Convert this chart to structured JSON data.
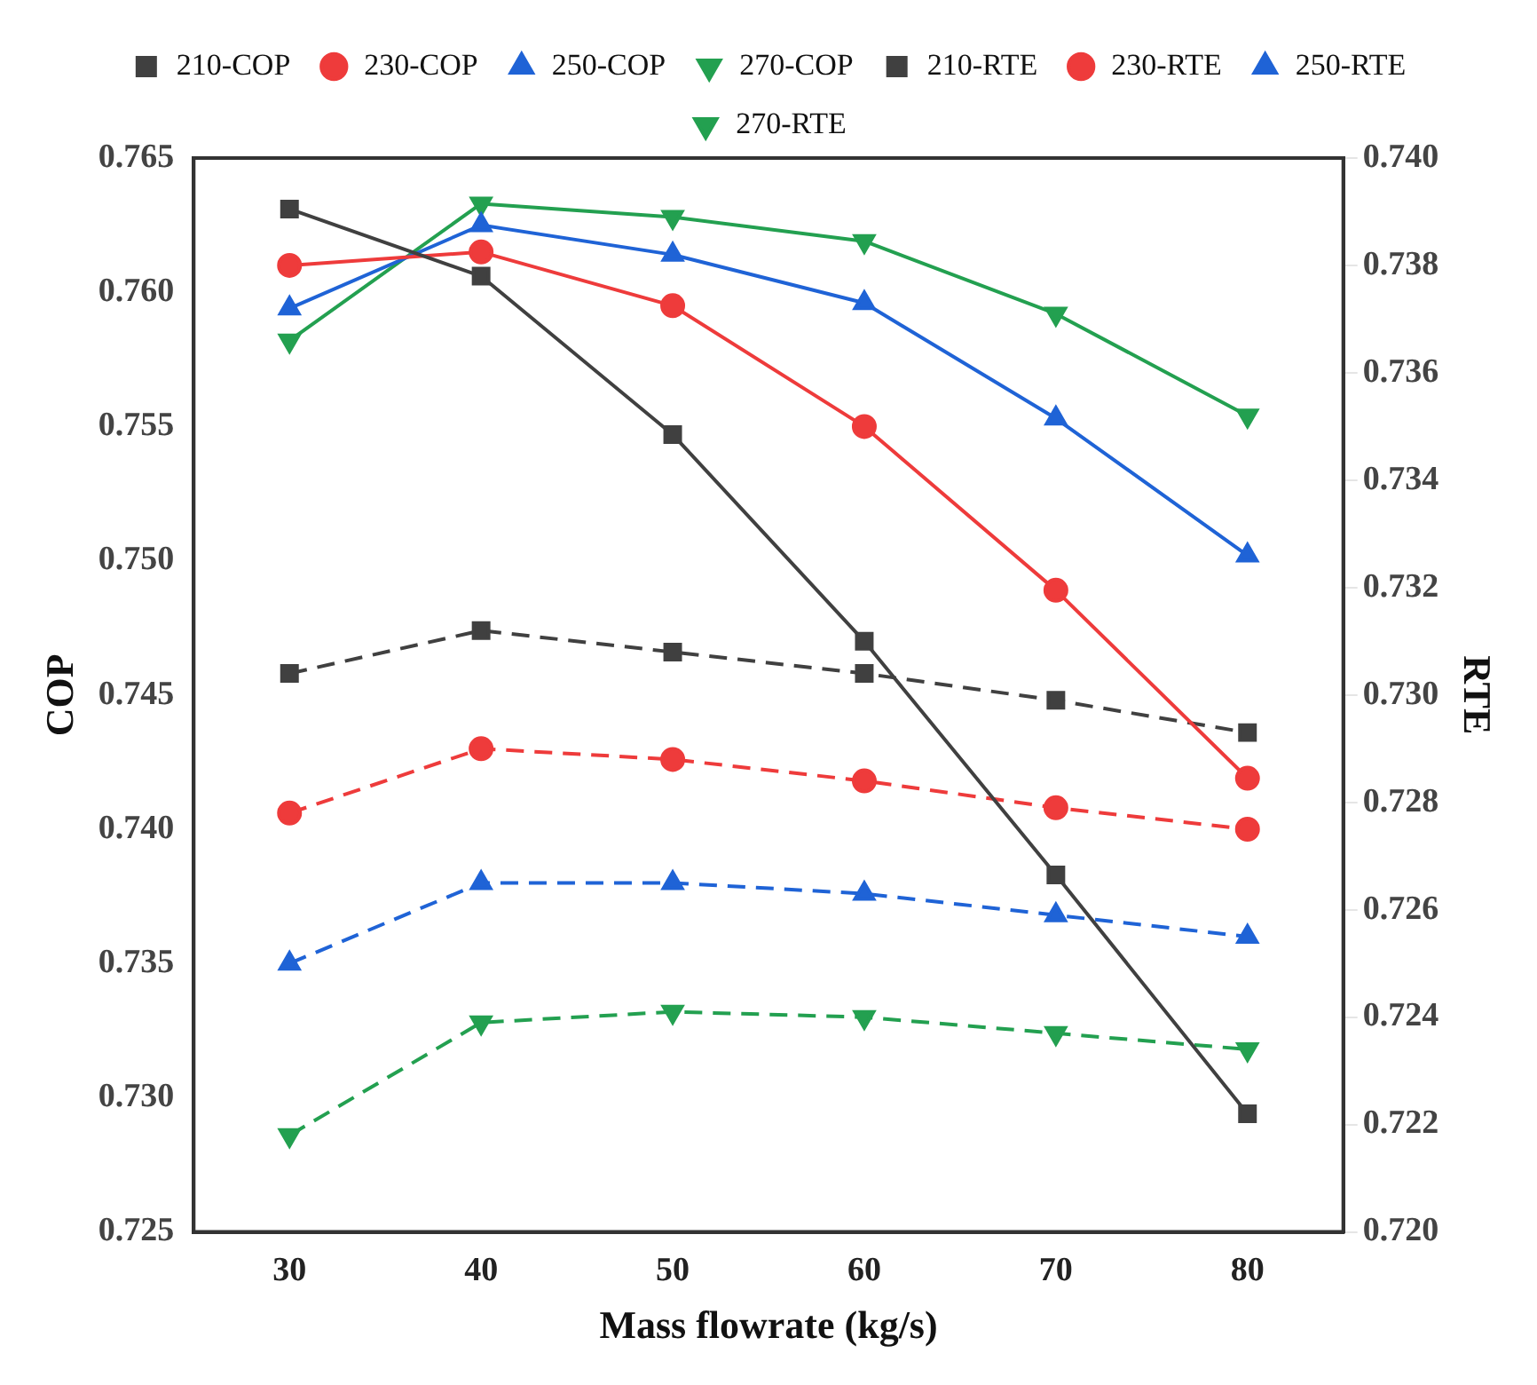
{
  "chart_data": {
    "type": "line",
    "xlabel": "Mass flowrate (kg/s)",
    "ylabel": "COP",
    "y2label": "RTE",
    "x": [
      30,
      40,
      50,
      60,
      70,
      80
    ],
    "xlim": [
      25,
      85
    ],
    "xticks": [
      30,
      40,
      50,
      60,
      70,
      80
    ],
    "ylim": [
      0.725,
      0.765
    ],
    "yticks": [
      0.725,
      {
        "value": 0.73,
        "label": "0.730"
      },
      0.735,
      {
        "value": 0.74,
        "label": "0.740"
      },
      0.745,
      {
        "value": 0.75,
        "label": "0.750"
      },
      0.755,
      {
        "value": 0.76,
        "label": "0.760"
      },
      0.765
    ],
    "y2lim": [
      0.72,
      0.74
    ],
    "y2ticks": [
      {
        "value": 0.72,
        "label": "0.720"
      },
      0.722,
      0.724,
      0.726,
      0.728,
      {
        "value": 0.73,
        "label": "0.730"
      },
      0.732,
      0.734,
      0.736,
      0.738,
      {
        "value": 0.74,
        "label": "0.740"
      }
    ],
    "grid": false,
    "legend": "top",
    "series": [
      {
        "name": "210-COP",
        "color": "#404040",
        "marker": "square",
        "line_style": "solid",
        "values": [
          0.7631,
          0.7606,
          0.7547,
          0.747,
          0.7383,
          0.7294
        ]
      },
      {
        "name": "230-COP",
        "color": "#ee3b3b",
        "marker": "circle",
        "line_style": "solid",
        "values": [
          0.761,
          0.7615,
          0.7595,
          0.755,
          0.7489,
          0.7419
        ]
      },
      {
        "name": "250-COP",
        "color": "#1f63d6",
        "marker": "triangle",
        "line_style": "solid",
        "values": [
          0.7594,
          0.7625,
          0.7614,
          0.7596,
          0.7553,
          0.7502
        ]
      },
      {
        "name": "270-COP",
        "color": "#23a050",
        "marker": "triangle-down",
        "line_style": "solid",
        "values": [
          0.7582,
          0.7633,
          0.7628,
          0.7619,
          0.7592,
          0.7554
        ]
      },
      {
        "name": "210-RTE",
        "color": "#404040",
        "marker": "square",
        "line_style": "dashed",
        "axis": "y2",
        "values": [
          0.7304,
          0.7312,
          0.7308,
          0.7304,
          0.7299,
          0.7293
        ]
      },
      {
        "name": "230-RTE",
        "color": "#ee3b3b",
        "marker": "circle",
        "line_style": "dashed",
        "axis": "y2",
        "values": [
          0.7278,
          0.729,
          0.7288,
          0.7284,
          0.7279,
          0.7275
        ]
      },
      {
        "name": "250-RTE",
        "color": "#1f63d6",
        "marker": "triangle",
        "line_style": "dashed",
        "axis": "y2",
        "values": [
          0.725,
          0.7265,
          0.7265,
          0.7263,
          0.7259,
          0.7255
        ]
      },
      {
        "name": "270-RTE",
        "color": "#23a050",
        "marker": "triangle-down",
        "line_style": "dashed",
        "axis": "y2",
        "values": [
          0.7218,
          0.7239,
          0.7241,
          0.724,
          0.7237,
          0.7234
        ]
      }
    ]
  }
}
